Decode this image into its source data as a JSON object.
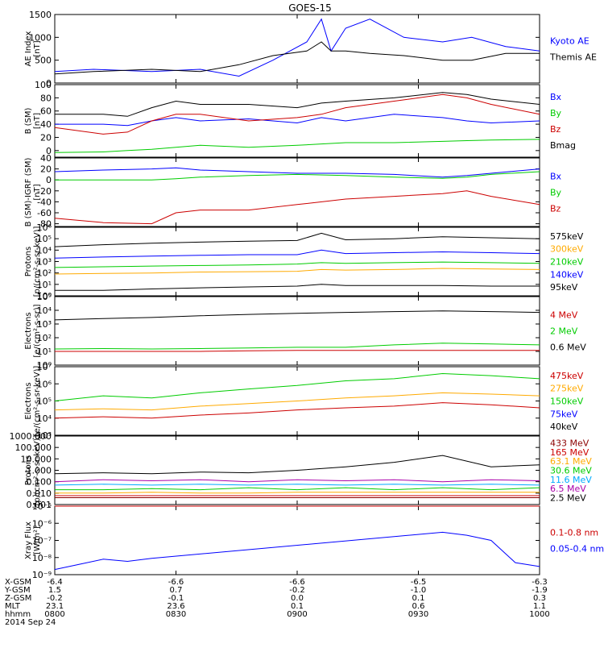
{
  "title": "GOES-15",
  "date_label": "2014 Sep 24",
  "colors": {
    "black": "#000000",
    "blue": "#0000ff",
    "green": "#00cc00",
    "red": "#cc0000",
    "orange": "#ffaa00",
    "cyan": "#00aaff",
    "purple": "#aa00aa",
    "darkred": "#8b0000"
  },
  "orbit_table": {
    "rows": [
      {
        "label": "X-GSM",
        "values": [
          "-6.4",
          "-6.6",
          "-6.6",
          "-6.5",
          "-6.3"
        ]
      },
      {
        "label": "Y-GSM",
        "values": [
          "1.5",
          "0.7",
          "-0.2",
          "-1.0",
          "-1.9"
        ]
      },
      {
        "label": "Z-GSM",
        "values": [
          "-0.2",
          "-0.1",
          "0.0",
          "0.1",
          "0.3"
        ]
      },
      {
        "label": "MLT",
        "values": [
          "23.1",
          "23.6",
          "0.1",
          "0.6",
          "1.1"
        ]
      },
      {
        "label": "hhmm",
        "values": [
          "0800",
          "0830",
          "0900",
          "0930",
          "1000"
        ]
      }
    ]
  },
  "chart_data": [
    {
      "type": "line",
      "ylabel": "AE Index\n[nT]",
      "ylim": [
        0,
        1500
      ],
      "ticks": [
        "0",
        "500",
        "1000",
        "1500"
      ],
      "tick_values": [
        0,
        500,
        1000,
        1500
      ],
      "x": [
        0,
        0.08,
        0.2,
        0.3,
        0.38,
        0.45,
        0.52,
        0.55,
        0.57,
        0.6,
        0.65,
        0.72,
        0.8,
        0.86,
        0.93,
        1.0
      ],
      "series": [
        {
          "name": "Kyoto AE",
          "color": "#0000ff",
          "values": [
            250,
            300,
            250,
            300,
            150,
            500,
            900,
            1400,
            700,
            1200,
            1400,
            1000,
            900,
            1000,
            800,
            700
          ]
        },
        {
          "name": "Themis AE",
          "color": "#000000",
          "values": [
            200,
            250,
            300,
            250,
            400,
            600,
            700,
            900,
            700,
            700,
            650,
            600,
            500,
            500,
            650,
            650
          ]
        }
      ],
      "legend": [
        "Kyoto AE",
        "Themis AE"
      ]
    },
    {
      "type": "line",
      "ylabel": "B (SM)\n[nT]",
      "ylim": [
        -10,
        100
      ],
      "ticks": [
        "0",
        "20",
        "40",
        "60",
        "80",
        "100"
      ],
      "tick_values": [
        0,
        20,
        40,
        60,
        80,
        100
      ],
      "x": [
        0,
        0.1,
        0.15,
        0.2,
        0.25,
        0.3,
        0.4,
        0.5,
        0.55,
        0.6,
        0.7,
        0.8,
        0.85,
        0.9,
        1.0
      ],
      "series": [
        {
          "name": "Bx",
          "color": "#0000ff",
          "values": [
            40,
            40,
            38,
            45,
            50,
            45,
            48,
            42,
            50,
            45,
            55,
            50,
            45,
            42,
            45
          ]
        },
        {
          "name": "By",
          "color": "#00cc00",
          "values": [
            -3,
            -2,
            0,
            2,
            5,
            8,
            5,
            8,
            10,
            12,
            12,
            14,
            15,
            16,
            17
          ]
        },
        {
          "name": "Bz",
          "color": "#cc0000",
          "values": [
            35,
            25,
            28,
            45,
            55,
            55,
            45,
            50,
            55,
            65,
            75,
            85,
            80,
            70,
            55
          ]
        },
        {
          "name": "Bmag",
          "color": "#000000",
          "values": [
            55,
            55,
            52,
            65,
            75,
            70,
            70,
            65,
            72,
            75,
            80,
            88,
            85,
            78,
            70
          ]
        }
      ],
      "legend": [
        "Bx",
        "By",
        "Bz",
        "Bmag"
      ]
    },
    {
      "type": "line",
      "ylabel": "B (SM)-IGRF (SM)\n[nT]",
      "ylim": [
        -85,
        40
      ],
      "ticks": [
        "-80",
        "-60",
        "-40",
        "-20",
        "0",
        "20",
        "40"
      ],
      "tick_values": [
        -80,
        -60,
        -40,
        -20,
        0,
        20,
        40
      ],
      "x": [
        0,
        0.1,
        0.2,
        0.25,
        0.3,
        0.4,
        0.5,
        0.6,
        0.7,
        0.8,
        0.85,
        0.9,
        1.0
      ],
      "series": [
        {
          "name": "Bx",
          "color": "#0000ff",
          "values": [
            15,
            18,
            20,
            22,
            18,
            15,
            12,
            12,
            10,
            5,
            8,
            12,
            20
          ]
        },
        {
          "name": "By",
          "color": "#00cc00",
          "values": [
            0,
            0,
            0,
            2,
            5,
            8,
            10,
            8,
            5,
            3,
            5,
            10,
            15
          ]
        },
        {
          "name": "Bz",
          "color": "#cc0000",
          "values": [
            -70,
            -78,
            -80,
            -60,
            -55,
            -55,
            -45,
            -35,
            -30,
            -25,
            -20,
            -30,
            -45
          ]
        }
      ],
      "legend": [
        "Bx",
        "By",
        "Bz"
      ]
    },
    {
      "type": "line",
      "ylabel": "Protons\n[p/(cm²-s-sr-keV)]",
      "scale": "log",
      "ylim": [
        1,
        1000000
      ],
      "ticks": [
        "10⁰",
        "10¹",
        "10²",
        "10³",
        "10⁴",
        "10⁵",
        "10⁶"
      ],
      "tick_values": [
        1,
        10,
        100,
        1000,
        10000,
        100000,
        1000000
      ],
      "x": [
        0,
        0.1,
        0.2,
        0.3,
        0.4,
        0.5,
        0.55,
        0.6,
        0.7,
        0.8,
        0.9,
        1.0
      ],
      "series": [
        {
          "name": "575keV",
          "color": "#000000",
          "values": [
            3,
            3,
            4,
            5,
            6,
            7,
            10,
            8,
            8,
            8,
            7,
            7
          ]
        },
        {
          "name": "300keV",
          "color": "#ffaa00",
          "values": [
            80,
            90,
            100,
            120,
            130,
            140,
            200,
            180,
            200,
            250,
            220,
            200
          ]
        },
        {
          "name": "210keV",
          "color": "#00cc00",
          "values": [
            300,
            350,
            400,
            450,
            500,
            600,
            800,
            700,
            800,
            900,
            800,
            700
          ]
        },
        {
          "name": "140keV",
          "color": "#0000ff",
          "values": [
            2000,
            2500,
            3000,
            3500,
            4000,
            4000,
            10000,
            5000,
            6000,
            7000,
            6000,
            5000
          ]
        },
        {
          "name": "95keV",
          "color": "#000000",
          "values": [
            20000,
            30000,
            40000,
            50000,
            60000,
            70000,
            300000,
            80000,
            100000,
            150000,
            120000,
            100000
          ]
        }
      ],
      "legend": [
        "575keV",
        "300keV",
        "210keV",
        "140keV",
        "95keV"
      ]
    },
    {
      "type": "line",
      "ylabel": "Electrons\n[e/(cm²-s-sr)]",
      "scale": "log",
      "ylim": [
        1,
        100000
      ],
      "ticks": [
        "10⁰",
        "10¹",
        "10²",
        "10³",
        "10⁴",
        "10⁵"
      ],
      "tick_values": [
        1,
        10,
        100,
        1000,
        10000,
        100000
      ],
      "x": [
        0,
        0.1,
        0.2,
        0.3,
        0.4,
        0.5,
        0.6,
        0.7,
        0.8,
        0.9,
        1.0
      ],
      "series": [
        {
          "name": "4 MeV",
          "color": "#cc0000",
          "values": [
            10,
            10,
            10,
            10,
            11,
            12,
            12,
            12,
            12,
            12,
            12
          ]
        },
        {
          "name": "2 MeV",
          "color": "#00cc00",
          "values": [
            15,
            16,
            15,
            16,
            18,
            20,
            20,
            30,
            40,
            35,
            30
          ]
        },
        {
          "name": "0.6 MeV",
          "color": "#000000",
          "values": [
            2000,
            2500,
            3000,
            4000,
            5000,
            6000,
            7000,
            8000,
            9000,
            8000,
            7000
          ]
        }
      ],
      "legend": [
        "4 MeV",
        "2 MeV",
        "0.6 MeV"
      ]
    },
    {
      "type": "line",
      "ylabel": "Electrons\n[e/(cm²-s-sr-keV)]",
      "scale": "log",
      "ylim": [
        1000,
        10000000
      ],
      "ticks": [
        "10³",
        "10⁴",
        "10⁵",
        "10⁶",
        "10⁷"
      ],
      "tick_values": [
        1000,
        10000,
        100000,
        1000000,
        10000000
      ],
      "x": [
        0,
        0.1,
        0.2,
        0.3,
        0.4,
        0.5,
        0.6,
        0.7,
        0.8,
        0.9,
        1.0
      ],
      "series": [
        {
          "name": "475keV",
          "color": "#cc0000",
          "values": [
            10000,
            12000,
            10000,
            15000,
            20000,
            30000,
            40000,
            50000,
            80000,
            60000,
            40000
          ]
        },
        {
          "name": "275keV",
          "color": "#ffaa00",
          "values": [
            30000,
            35000,
            30000,
            50000,
            70000,
            100000,
            150000,
            200000,
            300000,
            250000,
            200000
          ]
        },
        {
          "name": "150keV",
          "color": "#00cc00",
          "values": [
            100000,
            200000,
            150000,
            300000,
            500000,
            800000,
            1500000,
            2000000,
            4000000,
            3000000,
            2000000
          ]
        },
        {
          "name": "75keV",
          "color": "#0000ff",
          "values": [
            0,
            0,
            0,
            0,
            0,
            0,
            0,
            0,
            0,
            0,
            0
          ]
        },
        {
          "name": "40keV",
          "color": "#000000",
          "values": [
            0,
            0,
            0,
            0,
            0,
            0,
            0,
            0,
            0,
            0,
            0
          ]
        }
      ],
      "legend": [
        "475keV",
        "275keV",
        "150keV",
        "75keV",
        "40keV"
      ]
    },
    {
      "type": "line",
      "ylabel": "Protons\n[p/(cm²-s-sr-keV)]",
      "scale": "log",
      "ylim": [
        0.001,
        1000
      ],
      "ticks": [
        "0.001",
        "0.010",
        "0.100",
        "1.000",
        "10.000",
        "100.000",
        "1000.000"
      ],
      "tick_values": [
        0.001,
        0.01,
        0.1,
        1,
        10,
        100,
        1000
      ],
      "x": [
        0,
        0.1,
        0.2,
        0.3,
        0.4,
        0.5,
        0.6,
        0.7,
        0.8,
        0.9,
        1.0
      ],
      "series": [
        {
          "name": "433 MeV",
          "color": "#8b0000",
          "values": [
            0.004,
            0.004,
            0.004,
            0.004,
            0.004,
            0.004,
            0.004,
            0.004,
            0.004,
            0.004,
            0.004
          ]
        },
        {
          "name": "165 MeV",
          "color": "#cc0000",
          "values": [
            0.006,
            0.006,
            0.006,
            0.006,
            0.006,
            0.006,
            0.006,
            0.006,
            0.006,
            0.006,
            0.006
          ]
        },
        {
          "name": "63.1 MeV",
          "color": "#ffaa00",
          "values": [
            0.01,
            0.01,
            0.012,
            0.01,
            0.01,
            0.012,
            0.012,
            0.012,
            0.012,
            0.012,
            0.012
          ]
        },
        {
          "name": "30.6 MeV",
          "color": "#00cc00",
          "values": [
            0.02,
            0.02,
            0.025,
            0.02,
            0.03,
            0.02,
            0.03,
            0.02,
            0.03,
            0.02,
            0.03
          ]
        },
        {
          "name": "11.6 MeV",
          "color": "#00aaff",
          "values": [
            0.05,
            0.06,
            0.05,
            0.06,
            0.05,
            0.06,
            0.05,
            0.06,
            0.05,
            0.06,
            0.05
          ]
        },
        {
          "name": "6.5 MeV",
          "color": "#aa00aa",
          "values": [
            0.1,
            0.15,
            0.12,
            0.15,
            0.1,
            0.15,
            0.12,
            0.15,
            0.1,
            0.15,
            0.12
          ]
        },
        {
          "name": "2.5 MeV",
          "color": "#000000",
          "values": [
            0.5,
            0.6,
            0.5,
            0.7,
            0.6,
            1,
            2,
            5,
            20,
            2,
            3
          ]
        }
      ],
      "legend": [
        "433 MeV",
        "165 MeV",
        "63.1 MeV",
        "30.6 MeV",
        "11.6 MeV",
        "6.5 MeV",
        "2.5 MeV"
      ]
    },
    {
      "type": "line",
      "ylabel": "Xray Flux\n[W/m²]",
      "scale": "log",
      "ylim": [
        1e-09,
        1e-05
      ],
      "ticks": [
        "10⁻⁹",
        "10⁻⁸",
        "10⁻⁷",
        "10⁻⁶",
        "10⁻⁵"
      ],
      "tick_values": [
        1e-09,
        1e-08,
        1e-07,
        1e-06,
        1e-05
      ],
      "x": [
        0,
        0.05,
        0.1,
        0.15,
        0.2,
        0.8,
        0.85,
        0.9,
        0.95,
        1.0
      ],
      "series": [
        {
          "name": "0.1-0.8 nm",
          "color": "#cc0000",
          "values": [
            1e-05,
            1e-05,
            1e-05,
            1e-05,
            1e-05,
            1e-05,
            1e-05,
            1e-05,
            1e-05,
            1e-05
          ]
        },
        {
          "name": "0.05-0.4 nm",
          "color": "#0000ff",
          "values": [
            2e-09,
            4e-09,
            8e-09,
            6e-09,
            9e-09,
            3e-07,
            2e-07,
            1e-07,
            5e-09,
            3e-09
          ]
        }
      ],
      "legend": [
        "0.1-0.8 nm",
        "0.05-0.4 nm"
      ]
    }
  ]
}
